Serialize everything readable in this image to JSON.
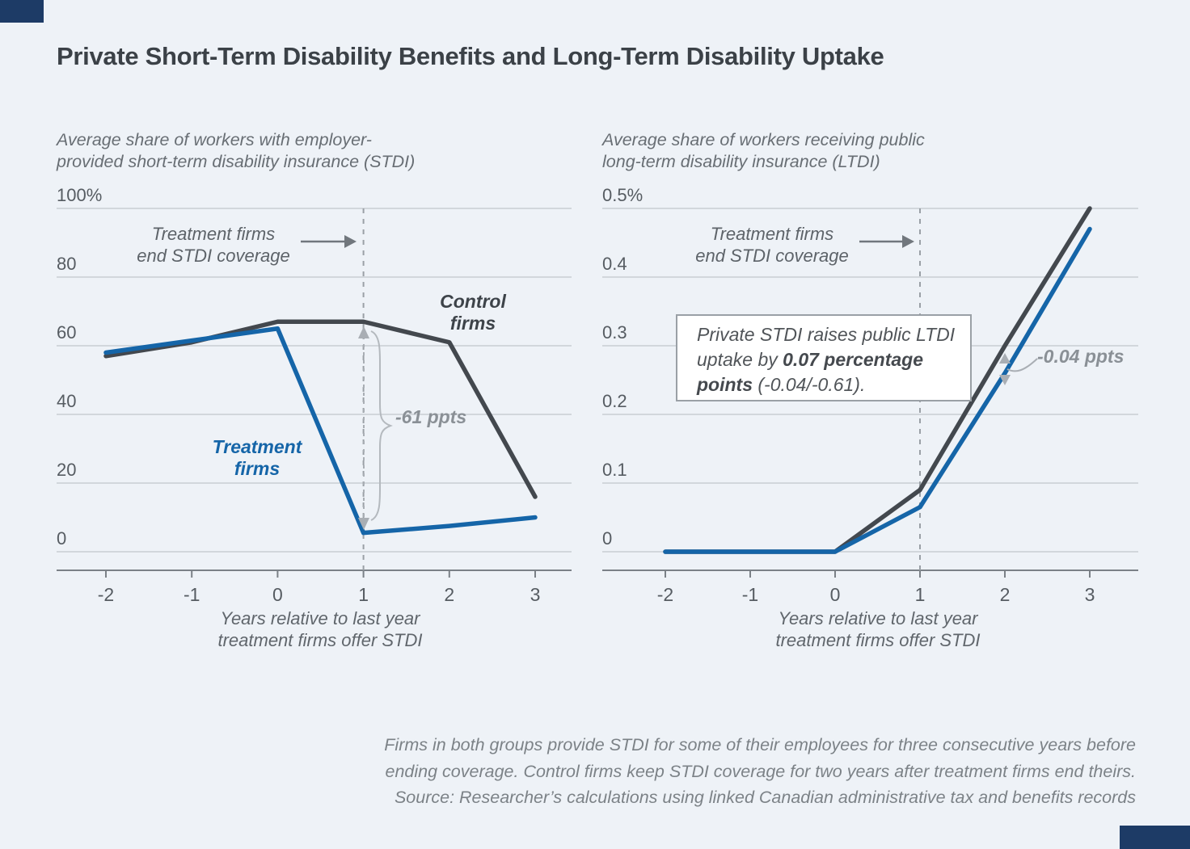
{
  "page": {
    "background": "#eef2f7",
    "accent": "#1d3b66"
  },
  "title": "Private Short-Term Disability Benefits and Long-Term Disability Uptake",
  "chart_data": [
    {
      "type": "line",
      "panel": "left",
      "subtitle_lines": [
        "Average share of workers with employer-",
        "provided short-term disability insurance (STDI)"
      ],
      "x": [
        -2,
        -1,
        0,
        1,
        2,
        3
      ],
      "x_tick_labels": [
        "-2",
        "-1",
        "0",
        "1",
        "2",
        "3"
      ],
      "xlabel_lines": [
        "Years relative to last year",
        "treatment firms offer STDI"
      ],
      "ylim": [
        0,
        100
      ],
      "y_ticks": [
        100,
        80,
        60,
        40,
        20,
        0
      ],
      "y_tick_labels": [
        "100%",
        "80",
        "60",
        "40",
        "20",
        "0"
      ],
      "grid": true,
      "event_line_x": 1,
      "event_label_lines": [
        "Treatment firms",
        "end STDI coverage"
      ],
      "series": [
        {
          "name": "Control firms",
          "color": "#43484e",
          "values": [
            57,
            61,
            67,
            67,
            61,
            16
          ]
        },
        {
          "name": "Treatment firms",
          "color": "#1565a8",
          "values": [
            58,
            61.5,
            65,
            5.5,
            7.5,
            10
          ]
        }
      ],
      "control_label_lines": [
        "Control",
        "firms"
      ],
      "treatment_label_lines": [
        "Treatment",
        "firms"
      ],
      "gap_label": "-61 ppts"
    },
    {
      "type": "line",
      "panel": "right",
      "subtitle_lines": [
        "Average share of workers receiving public",
        "long-term disability insurance (LTDI)"
      ],
      "x": [
        -2,
        -1,
        0,
        1,
        2,
        3
      ],
      "x_tick_labels": [
        "-2",
        "-1",
        "0",
        "1",
        "2",
        "3"
      ],
      "xlabel_lines": [
        "Years relative to last year",
        "treatment firms offer STDI"
      ],
      "ylim": [
        0,
        0.5
      ],
      "y_ticks": [
        0.5,
        0.4,
        0.3,
        0.2,
        0.1,
        0
      ],
      "y_tick_labels": [
        "0.5%",
        "0.4",
        "0.3",
        "0.2",
        "0.1",
        "0"
      ],
      "grid": true,
      "event_line_x": 1,
      "event_label_lines": [
        "Treatment firms",
        "end STDI coverage"
      ],
      "series": [
        {
          "name": "Control firms",
          "color": "#43484e",
          "values": [
            0,
            0,
            0,
            0.09,
            0.3,
            0.5
          ]
        },
        {
          "name": "Treatment firms",
          "color": "#1565a8",
          "values": [
            0,
            0,
            0,
            0.065,
            0.26,
            0.47
          ]
        }
      ],
      "callout": {
        "line1": "Private STDI raises public LTDI",
        "line2_normal": "uptake by ",
        "line2_bold": "0.07 percentage",
        "line3_bold": "points",
        "line3_normal": " (-0.04/-0.61)."
      },
      "gap_label": "-0.04 ppts"
    }
  ],
  "footer_lines": [
    "Firms in both groups provide STDI for some of their employees for three consecutive years before",
    "ending coverage. Control firms keep STDI coverage for two years after treatment firms end theirs.",
    "Source: Researcher’s calculations using linked Canadian administrative tax and benefits records"
  ]
}
